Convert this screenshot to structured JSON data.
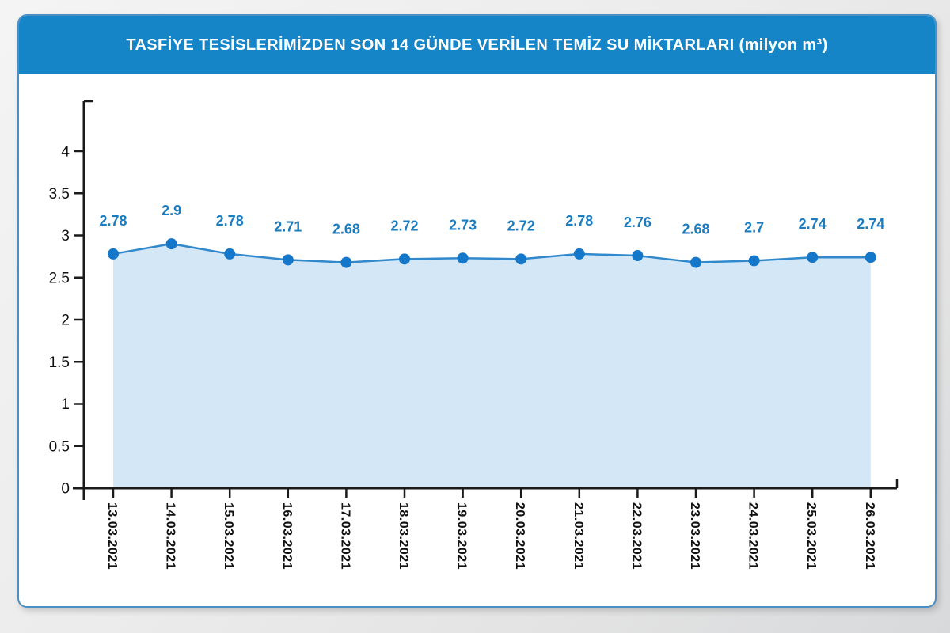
{
  "header": {
    "title": "TASFİYE TESİSLERİMİZDEN SON 14 GÜNDE VERİLEN TEMİZ SU MİKTARLARI (milyon m³)",
    "bg_color": "#1585c8",
    "text_color": "#ffffff"
  },
  "chart_data": {
    "type": "area",
    "title": "TASFİYE TESİSLERİMİZDEN SON 14 GÜNDE VERİLEN TEMİZ SU MİKTARLARI (milyon m³)",
    "xlabel": "",
    "ylabel": "",
    "categories": [
      "13.03.2021",
      "14.03.2021",
      "15.03.2021",
      "16.03.2021",
      "17.03.2021",
      "18.03.2021",
      "19.03.2021",
      "20.03.2021",
      "21.03.2021",
      "22.03.2021",
      "23.03.2021",
      "24.03.2021",
      "25.03.2021",
      "26.03.2021"
    ],
    "values": [
      2.78,
      2.9,
      2.78,
      2.71,
      2.68,
      2.72,
      2.73,
      2.72,
      2.78,
      2.76,
      2.68,
      2.7,
      2.74,
      2.74
    ],
    "data_labels": [
      "2.78",
      "2.9",
      "2.78",
      "2.71",
      "2.68",
      "2.72",
      "2.73",
      "2.72",
      "2.78",
      "2.76",
      "2.68",
      "2.7",
      "2.74",
      "2.74"
    ],
    "yticks": [
      {
        "value": 0,
        "label": "0"
      },
      {
        "value": 0.5,
        "label": "0.5"
      },
      {
        "value": 1,
        "label": "1"
      },
      {
        "value": 1.5,
        "label": "1.5"
      },
      {
        "value": 2,
        "label": "2"
      },
      {
        "value": 2.5,
        "label": "2.5"
      },
      {
        "value": 3,
        "label": "3"
      },
      {
        "value": 3.5,
        "label": "3.5"
      },
      {
        "value": 4,
        "label": "4"
      }
    ],
    "ylim": [
      0,
      4.6
    ],
    "grid": false,
    "legend": null,
    "colors": {
      "line": "#3189cc",
      "marker": "#1577c9",
      "fill": "#d4e7f7",
      "data_label": "#1b7cc0",
      "axis": "#1a1a1a",
      "tick_label": "#111111"
    }
  }
}
